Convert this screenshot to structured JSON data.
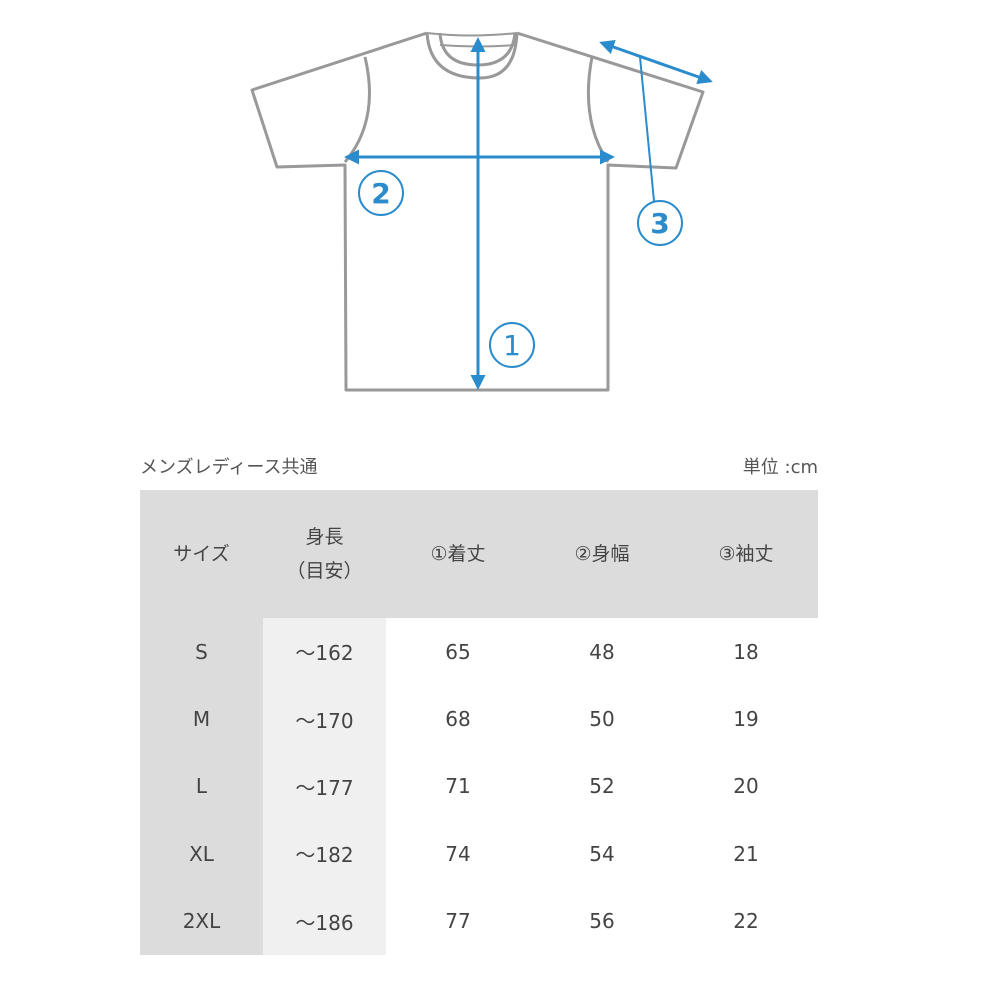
{
  "diagram": {
    "labels": [
      "1",
      "2",
      "3"
    ],
    "outline_color": "#999999",
    "accent_color": "#2a8ccc"
  },
  "caption_left": "メンズレディース共通",
  "caption_right": "単位 :cm",
  "table": {
    "headers": [
      "サイズ",
      "身長",
      "（目安）",
      "①着丈",
      "②身幅",
      "③袖丈"
    ],
    "rows": [
      [
        "S",
        "～162",
        "65",
        "48",
        "18"
      ],
      [
        "M",
        "～170",
        "68",
        "50",
        "19"
      ],
      [
        "L",
        "～177",
        "71",
        "52",
        "20"
      ],
      [
        "XL",
        "～182",
        "74",
        "54",
        "21"
      ],
      [
        "2XL",
        "～186",
        "77",
        "56",
        "22"
      ]
    ]
  }
}
